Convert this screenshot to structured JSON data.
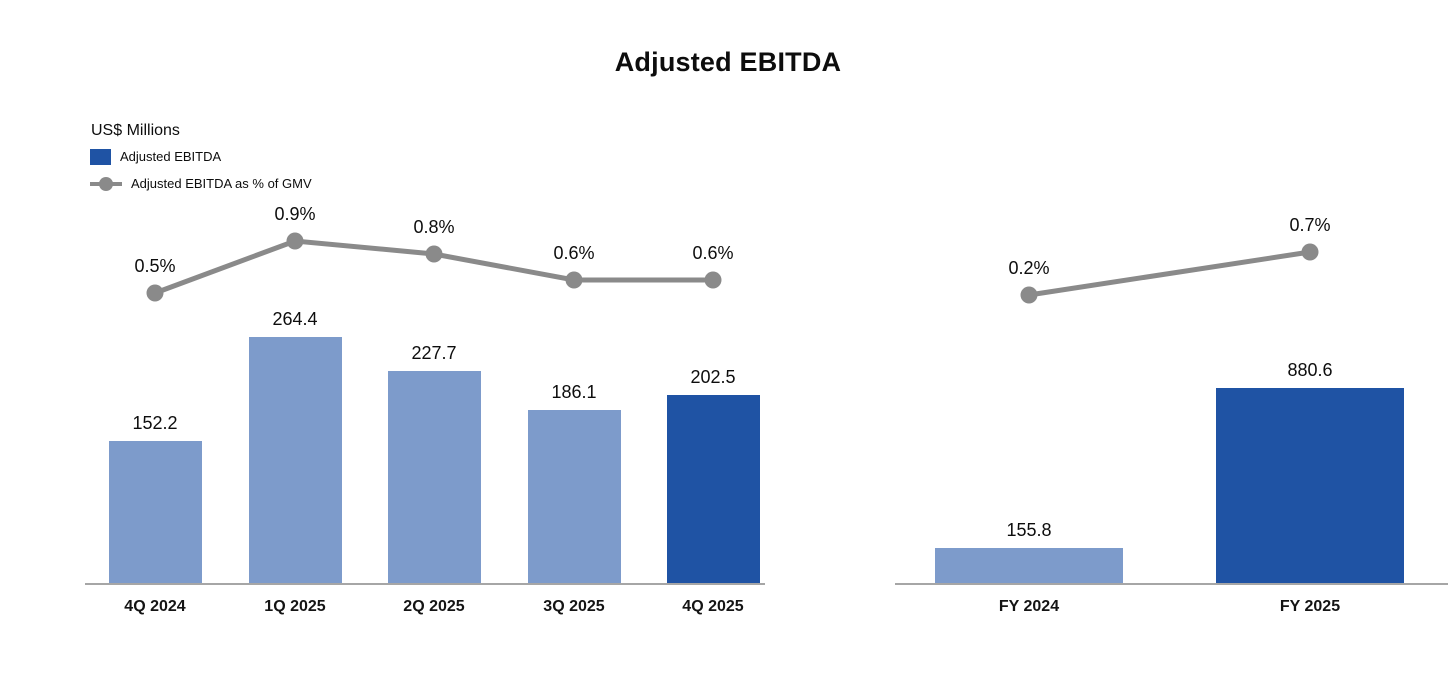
{
  "page": {
    "title": "Adjusted EBITDA",
    "units_label": "US$ Millions"
  },
  "legend": {
    "position": "top-left",
    "items": [
      {
        "icon": "bar-swatch",
        "label": "Adjusted EBITDA",
        "color": "#1F53A4"
      },
      {
        "icon": "line-marker",
        "label": "Adjusted EBITDA as % of GMV",
        "color": "#8A8A8A"
      }
    ]
  },
  "colors": {
    "bar_light": "#7D9BCB",
    "bar_dark": "#1F53A4",
    "line_gray": "#8A8A8A",
    "axis": "#A6A6A6",
    "text": "#0D0D0D"
  },
  "chart_data": [
    {
      "type": "bar+line",
      "categories": [
        "4Q 2024",
        "1Q 2025",
        "2Q 2025",
        "3Q 2025",
        "4Q 2025"
      ],
      "series": [
        {
          "name": "Adjusted EBITDA",
          "type": "bar",
          "values": [
            152.2,
            264.4,
            227.7,
            186.1,
            202.5
          ],
          "value_labels": [
            "152.2",
            "264.4",
            "227.7",
            "186.1",
            "202.5"
          ],
          "bar_color_roles": [
            "light",
            "light",
            "light",
            "light",
            "dark"
          ]
        },
        {
          "name": "Adjusted EBITDA as % of GMV",
          "type": "line",
          "values": [
            0.5,
            0.9,
            0.8,
            0.6,
            0.6
          ],
          "value_labels": [
            "0.5%",
            "0.9%",
            "0.8%",
            "0.6%",
            "0.6%"
          ]
        }
      ],
      "grid": false,
      "value_axis_hidden": true
    },
    {
      "type": "bar+line",
      "categories": [
        "FY 2024",
        "FY 2025"
      ],
      "series": [
        {
          "name": "Adjusted EBITDA",
          "type": "bar",
          "values": [
            155.8,
            880.6
          ],
          "value_labels": [
            "155.8",
            "880.6"
          ],
          "bar_color_roles": [
            "light",
            "dark"
          ]
        },
        {
          "name": "Adjusted EBITDA as % of GMV",
          "type": "line",
          "values": [
            0.2,
            0.7
          ],
          "value_labels": [
            "0.2%",
            "0.7%"
          ]
        }
      ],
      "grid": false,
      "value_axis_hidden": true
    }
  ]
}
